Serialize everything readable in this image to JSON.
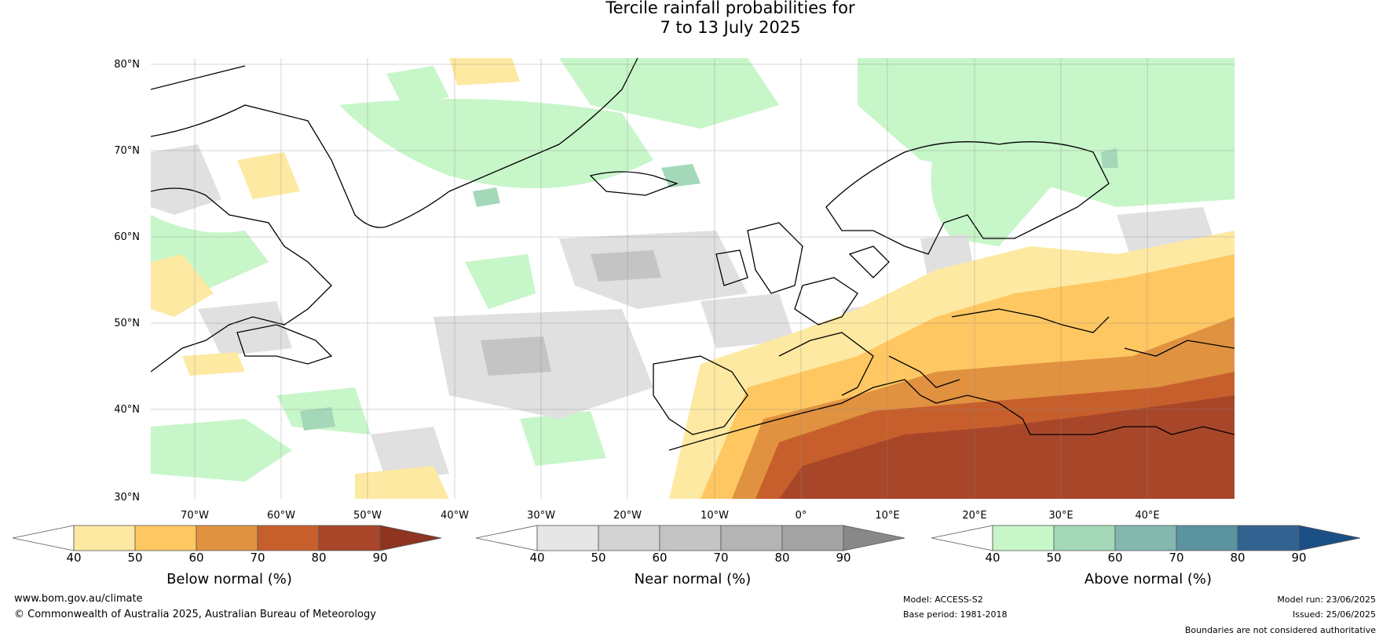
{
  "title_line1": "Tercile rainfall probabilities for",
  "title_line2": "7 to 13 July 2025",
  "lat_labels": [
    "80°N",
    "70°N",
    "60°N",
    "50°N",
    "40°N",
    "30°N"
  ],
  "lon_labels": [
    "70°W",
    "60°W",
    "50°W",
    "40°W",
    "30°W",
    "20°W",
    "10°W",
    "0°",
    "10°E",
    "20°E",
    "30°E",
    "40°E"
  ],
  "colorbars": [
    {
      "label": "Below normal (%)",
      "ticks": [
        "40",
        "50",
        "60",
        "70",
        "80",
        "90"
      ],
      "colors": [
        "#ffffff",
        "#fde9a2",
        "#fec762",
        "#e19240",
        "#c75f2c",
        "#a8462a",
        "#8e3420"
      ]
    },
    {
      "label": "Near normal (%)",
      "ticks": [
        "40",
        "50",
        "60",
        "70",
        "80",
        "90"
      ],
      "colors": [
        "#ffffff",
        "#e6e6e6",
        "#d3d3d3",
        "#c4c4c4",
        "#b4b4b4",
        "#a3a3a3",
        "#888888"
      ]
    },
    {
      "label": "Above normal (%)",
      "ticks": [
        "40",
        "50",
        "60",
        "70",
        "80",
        "90"
      ],
      "colors": [
        "#ffffff",
        "#c7f6c9",
        "#a4d8b8",
        "#82b8ae",
        "#5c93a0",
        "#32628f",
        "#1a4f85"
      ]
    }
  ],
  "footer": {
    "website": "www.bom.gov.au/climate",
    "copyright": "© Commonwealth of Australia 2025, Australian Bureau of Meteorology",
    "model": "Model: ACCESS-S2",
    "base_period": "Base period: 1981-2018",
    "model_run": "Model run: 23/06/2025",
    "issued": "Issued: 25/06/2025",
    "disclaimer": "Boundaries are not considered authoritative"
  }
}
